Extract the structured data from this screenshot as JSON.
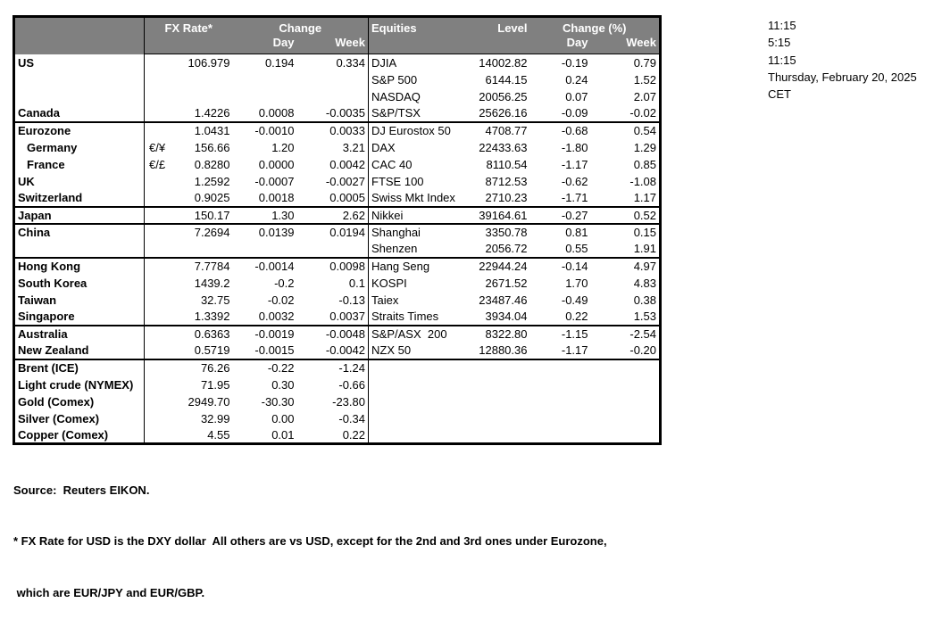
{
  "colors": {
    "header_bg": "#808080",
    "header_text": "#ffffff",
    "border": "#000000",
    "text": "#000000"
  },
  "header": {
    "fx": {
      "rate_label": "FX Rate*",
      "change_label": "Change",
      "day_label": "Day",
      "week_label": "Week"
    },
    "equities": {
      "title": "Equities",
      "level_label": "Level",
      "change_label": "Change (%)",
      "day_label": "Day",
      "week_label": "Week"
    }
  },
  "rows": [
    {
      "label": "US",
      "pair": "",
      "rate": "106.979",
      "day": "0.194",
      "week": "0.334",
      "equity": "DJIA",
      "level": "14002.82",
      "eday": "-0.19",
      "eweek": "0.79",
      "indent": false,
      "sep": false
    },
    {
      "label": "",
      "pair": "",
      "rate": "",
      "day": "",
      "week": "",
      "equity": "S&P 500",
      "level": "6144.15",
      "eday": "0.24",
      "eweek": "1.52",
      "indent": false,
      "sep": false
    },
    {
      "label": "",
      "pair": "",
      "rate": "",
      "day": "",
      "week": "",
      "equity": "NASDAQ",
      "level": "20056.25",
      "eday": "0.07",
      "eweek": "2.07",
      "indent": false,
      "sep": false
    },
    {
      "label": "Canada",
      "pair": "",
      "rate": "1.4226",
      "day": "0.0008",
      "week": "-0.0035",
      "equity": "S&P/TSX",
      "level": "25626.16",
      "eday": "-0.09",
      "eweek": "-0.02",
      "indent": false,
      "sep": false
    },
    {
      "label": "Eurozone",
      "pair": "",
      "rate": "1.0431",
      "day": "-0.0010",
      "week": "0.0033",
      "equity": "DJ Eurostox 50",
      "level": "4708.77",
      "eday": "-0.68",
      "eweek": "0.54",
      "indent": false,
      "sep": true
    },
    {
      "label": "Germany",
      "pair": "€/¥",
      "rate": "156.66",
      "day": "1.20",
      "week": "3.21",
      "equity": "DAX",
      "level": "22433.63",
      "eday": "-1.80",
      "eweek": "1.29",
      "indent": true,
      "sep": false
    },
    {
      "label": "France",
      "pair": "€/£",
      "rate": "0.8280",
      "day": "0.0000",
      "week": "0.0042",
      "equity": "CAC 40",
      "level": "8110.54",
      "eday": "-1.17",
      "eweek": "0.85",
      "indent": true,
      "sep": false
    },
    {
      "label": "UK",
      "pair": "",
      "rate": "1.2592",
      "day": "-0.0007",
      "week": "-0.0027",
      "equity": "FTSE 100",
      "level": "8712.53",
      "eday": "-0.62",
      "eweek": "-1.08",
      "indent": false,
      "sep": false
    },
    {
      "label": "Switzerland",
      "pair": "",
      "rate": "0.9025",
      "day": "0.0018",
      "week": "0.0005",
      "equity": "Swiss Mkt Index",
      "level": "2710.23",
      "eday": "-1.71",
      "eweek": "1.17",
      "indent": false,
      "sep": false
    },
    {
      "label": "Japan",
      "pair": "",
      "rate": "150.17",
      "day": "1.30",
      "week": "2.62",
      "equity": "Nikkei",
      "level": "39164.61",
      "eday": "-0.27",
      "eweek": "0.52",
      "indent": false,
      "sep": true
    },
    {
      "label": "China",
      "pair": "",
      "rate": "7.2694",
      "day": "0.0139",
      "week": "0.0194",
      "equity": "Shanghai",
      "level": "3350.78",
      "eday": "0.81",
      "eweek": "0.15",
      "indent": false,
      "sep": true
    },
    {
      "label": "",
      "pair": "",
      "rate": "",
      "day": "",
      "week": "",
      "equity": "Shenzen",
      "level": "2056.72",
      "eday": "0.55",
      "eweek": "1.91",
      "indent": false,
      "sep": false
    },
    {
      "label": "Hong Kong",
      "pair": "",
      "rate": "7.7784",
      "day": "-0.0014",
      "week": "0.0098",
      "equity": "Hang Seng",
      "level": "22944.24",
      "eday": "-0.14",
      "eweek": "4.97",
      "indent": false,
      "sep": true
    },
    {
      "label": "South Korea",
      "pair": "",
      "rate": "1439.2",
      "day": "-0.2",
      "week": "0.1",
      "equity": "KOSPI",
      "level": "2671.52",
      "eday": "1.70",
      "eweek": "4.83",
      "indent": false,
      "sep": false
    },
    {
      "label": "Taiwan",
      "pair": "",
      "rate": "32.75",
      "day": "-0.02",
      "week": "-0.13",
      "equity": "Taiex",
      "level": "23487.46",
      "eday": "-0.49",
      "eweek": "0.38",
      "indent": false,
      "sep": false
    },
    {
      "label": "Singapore",
      "pair": "",
      "rate": "1.3392",
      "day": "0.0032",
      "week": "0.0037",
      "equity": "Straits Times",
      "level": "3934.04",
      "eday": "0.22",
      "eweek": "1.53",
      "indent": false,
      "sep": false
    },
    {
      "label": "Australia",
      "pair": "",
      "rate": "0.6363",
      "day": "-0.0019",
      "week": "-0.0048",
      "equity": "S&P/ASX  200",
      "level": "8322.80",
      "eday": "-1.15",
      "eweek": "-2.54",
      "indent": false,
      "sep": true
    },
    {
      "label": "New Zealand",
      "pair": "",
      "rate": "0.5719",
      "day": "-0.0015",
      "week": "-0.0042",
      "equity": "NZX 50",
      "level": "12880.36",
      "eday": "-1.17",
      "eweek": "-0.20",
      "indent": false,
      "sep": false
    },
    {
      "label": "Brent (ICE)",
      "pair": "",
      "rate": "76.26",
      "day": "-0.22",
      "week": "-1.24",
      "equity": "",
      "level": "",
      "eday": "",
      "eweek": "",
      "indent": false,
      "sep": true
    },
    {
      "label": "Light crude (NYMEX)",
      "pair": "",
      "rate": "71.95",
      "day": "0.30",
      "week": "-0.66",
      "equity": "",
      "level": "",
      "eday": "",
      "eweek": "",
      "indent": false,
      "sep": false
    },
    {
      "label": "Gold (Comex)",
      "pair": "",
      "rate": "2949.70",
      "day": "-30.30",
      "week": "-23.80",
      "equity": "",
      "level": "",
      "eday": "",
      "eweek": "",
      "indent": false,
      "sep": false
    },
    {
      "label": "Silver (Comex)",
      "pair": "",
      "rate": "32.99",
      "day": "0.00",
      "week": "-0.34",
      "equity": "",
      "level": "",
      "eday": "",
      "eweek": "",
      "indent": false,
      "sep": false
    },
    {
      "label": "Copper (Comex)",
      "pair": "",
      "rate": "4.55",
      "day": "0.01",
      "week": "0.22",
      "equity": "",
      "level": "",
      "eday": "",
      "eweek": "",
      "indent": false,
      "sep": false
    }
  ],
  "side_info": {
    "lines": [
      "11:15",
      "5:15",
      "11:15",
      "Thursday, February 20, 2025",
      "CET"
    ]
  },
  "footer": {
    "source_line": "Source:  Reuters EIKON.",
    "note_line1": "* FX Rate for USD is the DXY dollar  All others are vs USD, except for the 2nd and 3rd ones under Eurozone,",
    "note_line2": " which are EUR/JPY and EUR/GBP."
  }
}
